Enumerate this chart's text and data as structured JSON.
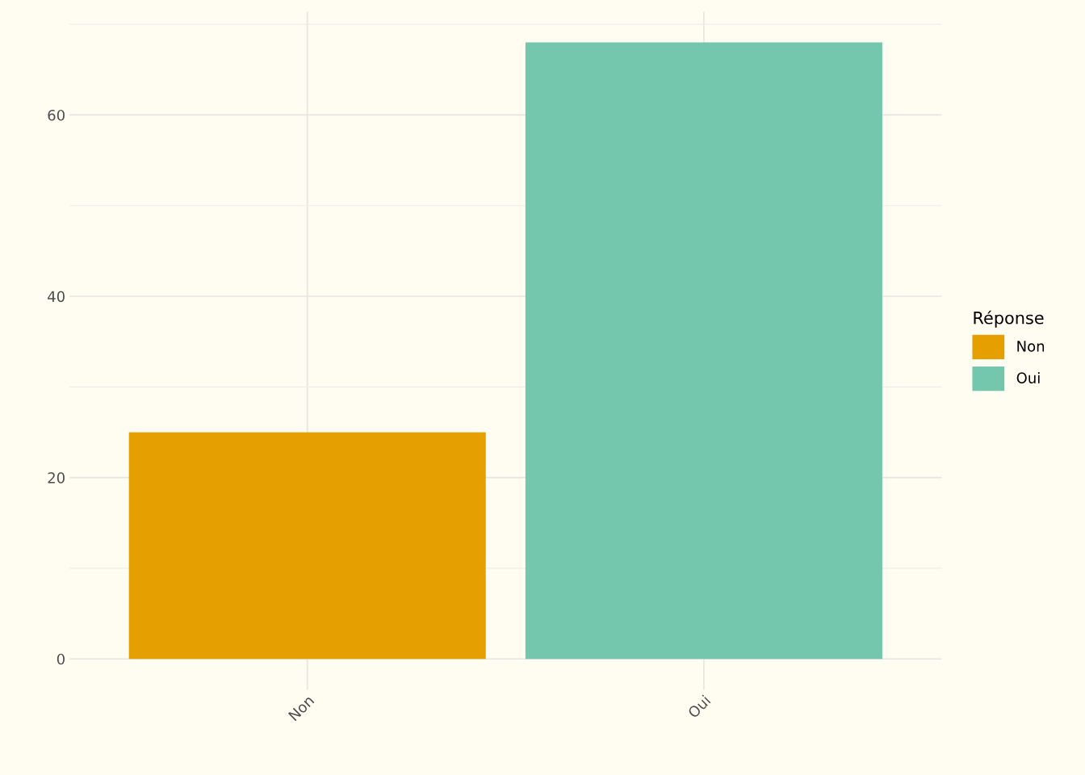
{
  "chart_data": {
    "type": "bar",
    "categories": [
      "Non",
      "Oui"
    ],
    "series": [
      {
        "name": "Non",
        "color": "#e69f00",
        "values": [
          25,
          null
        ]
      },
      {
        "name": "Oui",
        "color": "#74c7ad",
        "values": [
          null,
          68
        ]
      }
    ],
    "legend_title": "Réponse",
    "legend": "right",
    "ylim": [
      -3.4,
      71.4
    ],
    "yticks": [
      0,
      {
        "value": 10,
        "label": null
      },
      20,
      {
        "value": 30,
        "label": null
      },
      40,
      {
        "value": 50,
        "label": null
      },
      60,
      {
        "value": 70,
        "label": null
      }
    ],
    "grid": true
  }
}
